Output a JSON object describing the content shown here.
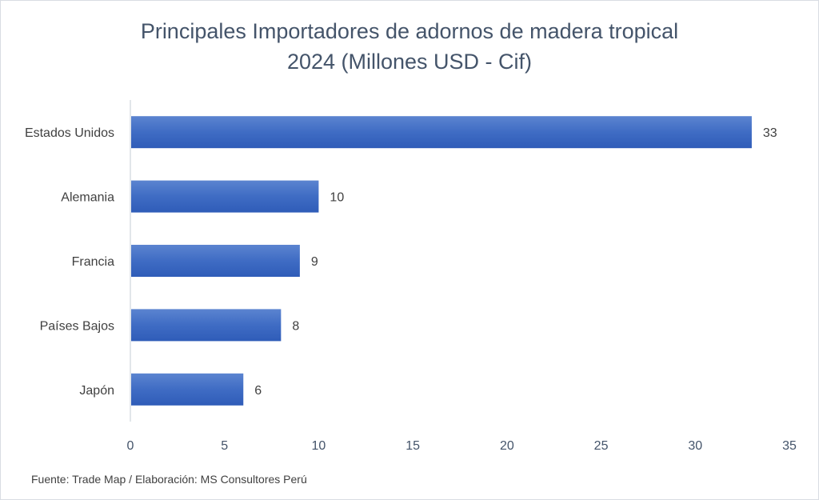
{
  "chart_data": {
    "type": "bar",
    "orientation": "horizontal",
    "title": "Principales Importadores de adornos de madera tropical",
    "subtitle": "2024 (Millones USD - Cif)",
    "categories": [
      "Estados Unidos",
      "Alemania",
      "Francia",
      "Países Bajos",
      "Japón"
    ],
    "values": [
      33,
      10,
      9,
      8,
      6
    ],
    "data_labels": [
      "33",
      "10",
      "9",
      "8",
      "6"
    ],
    "xlim": [
      0,
      35
    ],
    "x_ticks": [
      "0",
      "5",
      "10",
      "15",
      "20",
      "25",
      "30",
      "35"
    ],
    "xlabel": "",
    "ylabel": "",
    "grid": false,
    "bar_color": "#4472c4",
    "source": "Fuente: Trade Map / Elaboración: MS Consultores Perú"
  }
}
